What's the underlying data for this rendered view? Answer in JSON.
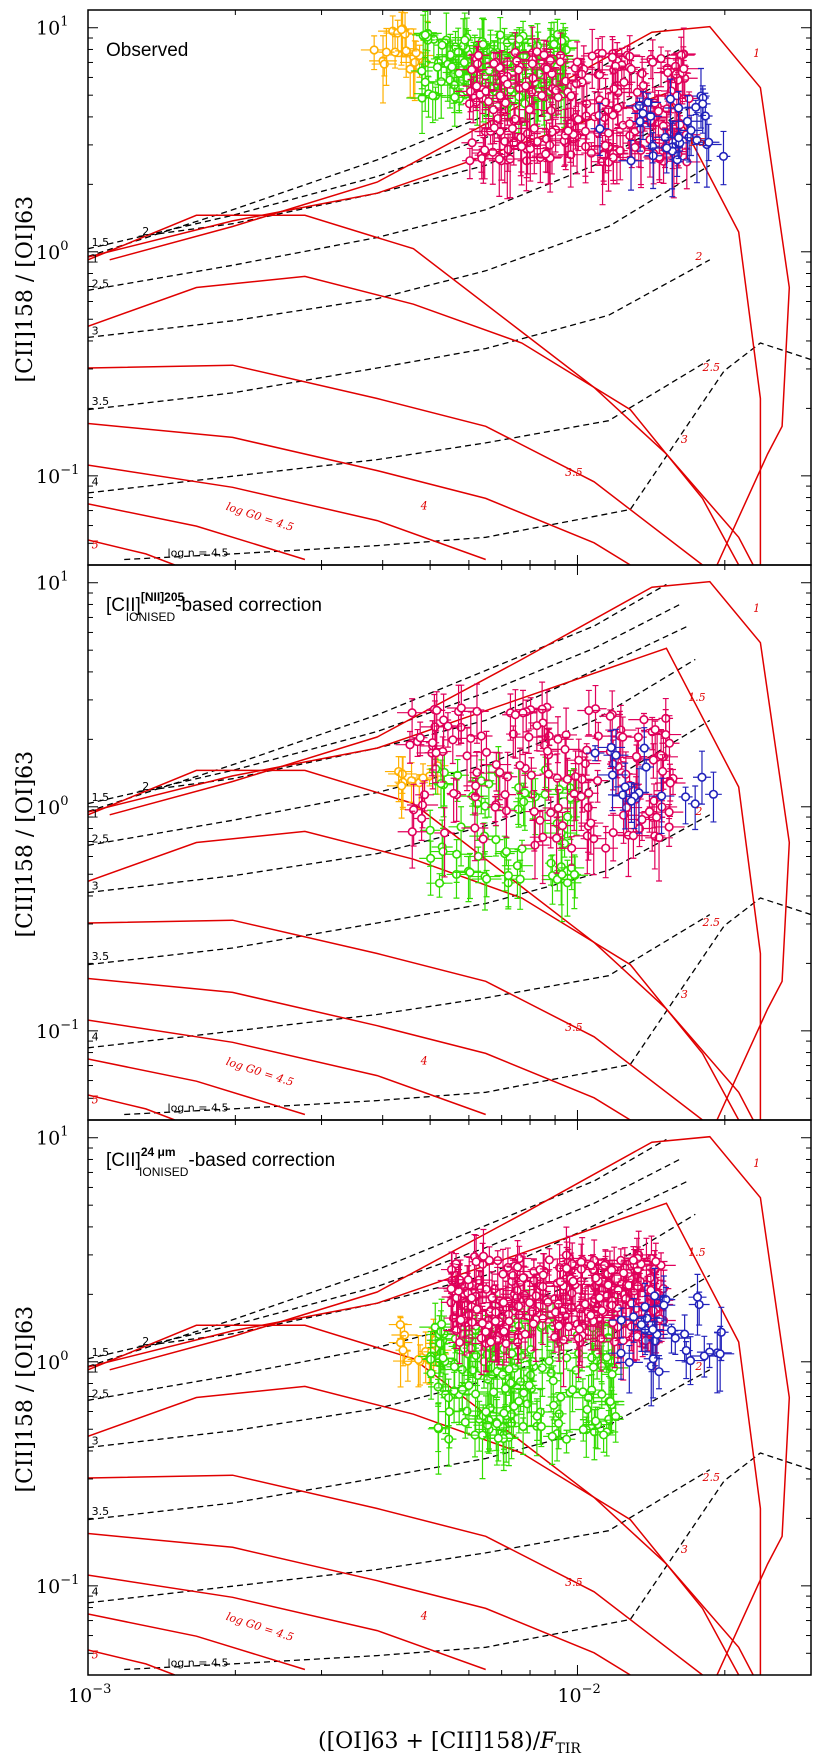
{
  "chart_data": [
    {
      "type": "scatter",
      "panel": "observed",
      "title": "Observed",
      "title_sub": "",
      "title_suffix": "",
      "xlabel": "([OI]63 + [CII]158)/F_TIR",
      "ylabel": "[CII]158 / [OI]63",
      "xscale": "log",
      "yscale": "log",
      "xlim": [
        0.001,
        0.03
      ],
      "ylim": [
        0.04,
        12
      ],
      "x_ticks": [
        "10^-3",
        "10^-2"
      ],
      "y_ticks": [
        "10^-1",
        "10^0",
        "10^1"
      ],
      "series": [
        {
          "name": "yellow",
          "color": "#ffb000",
          "count": 18,
          "x_range": [
            0.0037,
            0.0052
          ],
          "y_range": [
            6.5,
            10.0
          ]
        },
        {
          "name": "green",
          "color": "#33dd00",
          "count": 130,
          "x_range": [
            0.0048,
            0.0095
          ],
          "y_range": [
            4.5,
            9.5
          ]
        },
        {
          "name": "magenta",
          "color": "#e0005a",
          "count": 220,
          "x_range": [
            0.006,
            0.017
          ],
          "y_range": [
            2.5,
            8.0
          ]
        },
        {
          "name": "blue",
          "color": "#2222bb",
          "count": 30,
          "x_range": [
            0.011,
            0.02
          ],
          "y_range": [
            2.5,
            5.0
          ]
        }
      ]
    },
    {
      "type": "scatter",
      "panel": "nii205",
      "title": "[CII]",
      "title_sub": "IONISED",
      "title_sup": "[NII]205",
      "title_suffix": "-based correction",
      "xlabel": "([OI]63 + [CII]158)/F_TIR",
      "ylabel": "[CII]158 / [OI]63",
      "xscale": "log",
      "yscale": "log",
      "xlim": [
        0.001,
        0.03
      ],
      "ylim": [
        0.04,
        12
      ],
      "x_ticks": [
        "10^-3",
        "10^-2"
      ],
      "y_ticks": [
        "10^-1",
        "10^0",
        "10^1"
      ],
      "series": [
        {
          "name": "yellow",
          "color": "#ffb000",
          "count": 10,
          "x_range": [
            0.0043,
            0.0052
          ],
          "y_range": [
            1.2,
            1.6
          ]
        },
        {
          "name": "green",
          "color": "#33dd00",
          "count": 60,
          "x_range": [
            0.005,
            0.01
          ],
          "y_range": [
            0.45,
            1.5
          ]
        },
        {
          "name": "magenta",
          "color": "#e0005a",
          "count": 140,
          "x_range": [
            0.0045,
            0.016
          ],
          "y_range": [
            0.65,
            2.8
          ]
        },
        {
          "name": "blue",
          "color": "#2222bb",
          "count": 16,
          "x_range": [
            0.0105,
            0.019
          ],
          "y_range": [
            1.0,
            1.9
          ]
        }
      ]
    },
    {
      "type": "scatter",
      "panel": "24um",
      "title": "[CII]",
      "title_sub": "IONISED",
      "title_sup": "24 μm",
      "title_suffix": "-based correction",
      "xlabel": "([OI]63 + [CII]158)/F_TIR",
      "ylabel": "[CII]158 / [OI]63",
      "xscale": "log",
      "yscale": "log",
      "xlim": [
        0.001,
        0.03
      ],
      "ylim": [
        0.04,
        12
      ],
      "x_ticks": [
        "10^-3",
        "10^-2"
      ],
      "y_ticks": [
        "10^-1",
        "10^0",
        "10^1"
      ],
      "series": [
        {
          "name": "yellow",
          "color": "#ffb000",
          "count": 14,
          "x_range": [
            0.0042,
            0.0052
          ],
          "y_range": [
            0.95,
            1.5
          ]
        },
        {
          "name": "green",
          "color": "#33dd00",
          "count": 170,
          "x_range": [
            0.005,
            0.012
          ],
          "y_range": [
            0.45,
            1.6
          ]
        },
        {
          "name": "magenta",
          "color": "#e0005a",
          "count": 260,
          "x_range": [
            0.0055,
            0.015
          ],
          "y_range": [
            1.2,
            3.0
          ]
        },
        {
          "name": "blue",
          "color": "#2222bb",
          "count": 30,
          "x_range": [
            0.012,
            0.02
          ],
          "y_range": [
            0.9,
            2.0
          ]
        }
      ]
    }
  ],
  "model_grid": {
    "logG0_labels": [
      "1",
      "1.5",
      "2",
      "2.5",
      "3",
      "3.5",
      "4",
      "log G0 = 4.5",
      "5"
    ],
    "logn_labels": [
      "1",
      "1.5",
      "2",
      "2.5",
      "3",
      "3.5",
      "4",
      "log n = 4.5"
    ],
    "G0_color": "#e00000",
    "n_color": "#000000"
  },
  "axis_text": {
    "ylabel": "[CII]158 / [OI]63",
    "xlabel_main": "([OI]63 + [CII]158)/",
    "xlabel_F": "F",
    "xlabel_sub": "TIR",
    "ytick_base": "10",
    "ytick_exp": [
      "1",
      "0",
      "−1"
    ],
    "xtick_exp": [
      "−3",
      "−2"
    ]
  }
}
